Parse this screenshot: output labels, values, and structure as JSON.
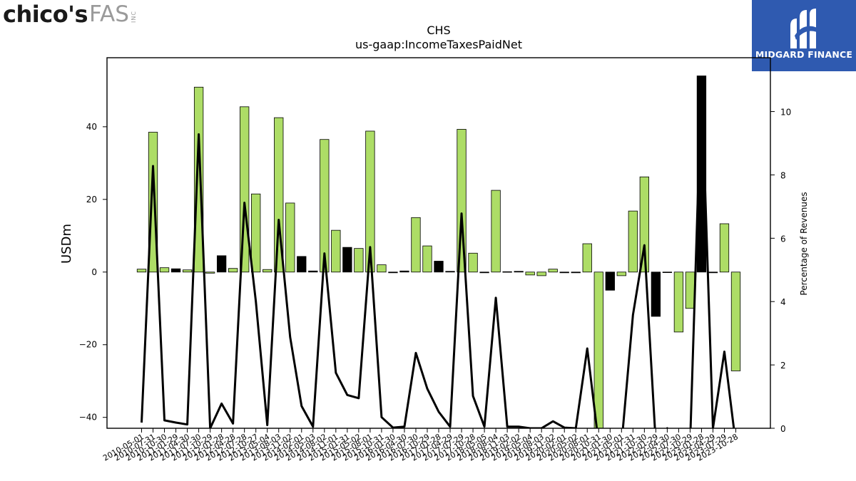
{
  "logos": {
    "left": {
      "brand": "chico's",
      "brand_suffix": "FAS",
      "brand_inc": "INC"
    },
    "right": {
      "name": "MIDGARD FINANCE",
      "background": "#2f5ab0"
    }
  },
  "chart_data": {
    "type": "bar+line",
    "title": "CHS",
    "subtitle": "us-gaap:IncomeTaxesPaidNet",
    "ylabel": "USDm",
    "y2label": "Percentage of Revenues",
    "ylim": [
      -43,
      59
    ],
    "y2lim": [
      0,
      11.7
    ],
    "yticks": [
      -40,
      -20,
      0,
      20,
      40
    ],
    "y2ticks": [
      0,
      2,
      4,
      6,
      8,
      10
    ],
    "colors": {
      "positive_change": "#addd66",
      "negative_change": "#000000",
      "line": "#000000"
    },
    "categories": [
      "2010-05-01",
      "2010-07-31",
      "2010-10-30",
      "2011-01-29",
      "2011-04-30",
      "2011-07-30",
      "2011-10-29",
      "2012-01-28",
      "2012-04-28",
      "2012-07-28",
      "2012-10-27",
      "2013-05-04",
      "2013-08-03",
      "2013-11-02",
      "2014-02-01",
      "2014-05-03",
      "2014-08-02",
      "2014-11-01",
      "2015-01-31",
      "2015-05-02",
      "2015-08-01",
      "2015-10-31",
      "2016-01-30",
      "2016-04-30",
      "2016-07-30",
      "2016-10-29",
      "2017-01-28",
      "2017-04-29",
      "2017-07-29",
      "2017-10-28",
      "2018-05-05",
      "2018-08-04",
      "2018-11-03",
      "2019-02-02",
      "2019-05-04",
      "2019-08-03",
      "2019-11-02",
      "2020-02-01",
      "2020-05-02",
      "2020-08-01",
      "2020-10-31",
      "2021-01-30",
      "2021-05-01",
      "2021-07-31",
      "2021-10-30",
      "2022-01-29",
      "2022-04-30",
      "2022-07-30",
      "2022-10-29",
      "2023-01-28",
      "2023-04-29",
      "2023-07-29",
      "2023-10-28"
    ],
    "values": [
      0.8,
      38.5,
      1.2,
      0.9,
      0.6,
      50.9,
      -0.3,
      4.5,
      1.0,
      45.5,
      21.5,
      0.7,
      42.5,
      19.0,
      4.3,
      0.3,
      36.5,
      11.5,
      6.8,
      6.5,
      38.8,
      2.0,
      -0.2,
      0.3,
      15.0,
      7.2,
      3.0,
      0.2,
      39.3,
      5.2,
      -0.2,
      22.5,
      0.1,
      0.2,
      -0.8,
      -1.0,
      0.8,
      -0.2,
      -0.2,
      7.8,
      -43.0,
      -5.0,
      -1.0,
      16.8,
      26.2,
      -12.2,
      0.0,
      -16.5,
      -10.0,
      54.0,
      -0.2,
      13.3,
      -27.2
    ],
    "bar_colors": [
      "g",
      "g",
      "g",
      "k",
      "g",
      "g",
      "g",
      "k",
      "g",
      "g",
      "g",
      "g",
      "g",
      "g",
      "k",
      "k",
      "g",
      "g",
      "k",
      "g",
      "g",
      "g",
      "k",
      "k",
      "g",
      "g",
      "k",
      "k",
      "g",
      "g",
      "k",
      "g",
      "k",
      "k",
      "g",
      "g",
      "g",
      "k",
      "k",
      "g",
      "g",
      "k",
      "g",
      "g",
      "g",
      "k",
      "g",
      "g",
      "g",
      "k",
      "k",
      "g",
      "g"
    ],
    "line_pct": [
      0.18,
      8.28,
      0.25,
      0.18,
      0.12,
      9.28,
      0.0,
      0.78,
      0.15,
      7.12,
      4.0,
      0.1,
      6.58,
      2.88,
      0.7,
      0.05,
      5.52,
      1.75,
      1.05,
      0.95,
      5.72,
      0.35,
      0.02,
      0.05,
      2.38,
      1.25,
      0.52,
      0.05,
      6.78,
      1.02,
      0.05,
      4.12,
      0.05,
      0.05,
      0.0,
      0.0,
      0.22,
      0.02,
      0.0,
      2.52,
      -0.5,
      -0.5,
      -0.5,
      3.58,
      5.78,
      -0.5,
      0.0,
      -0.5,
      -0.5,
      11.0,
      0.0,
      2.42,
      -0.5
    ]
  }
}
